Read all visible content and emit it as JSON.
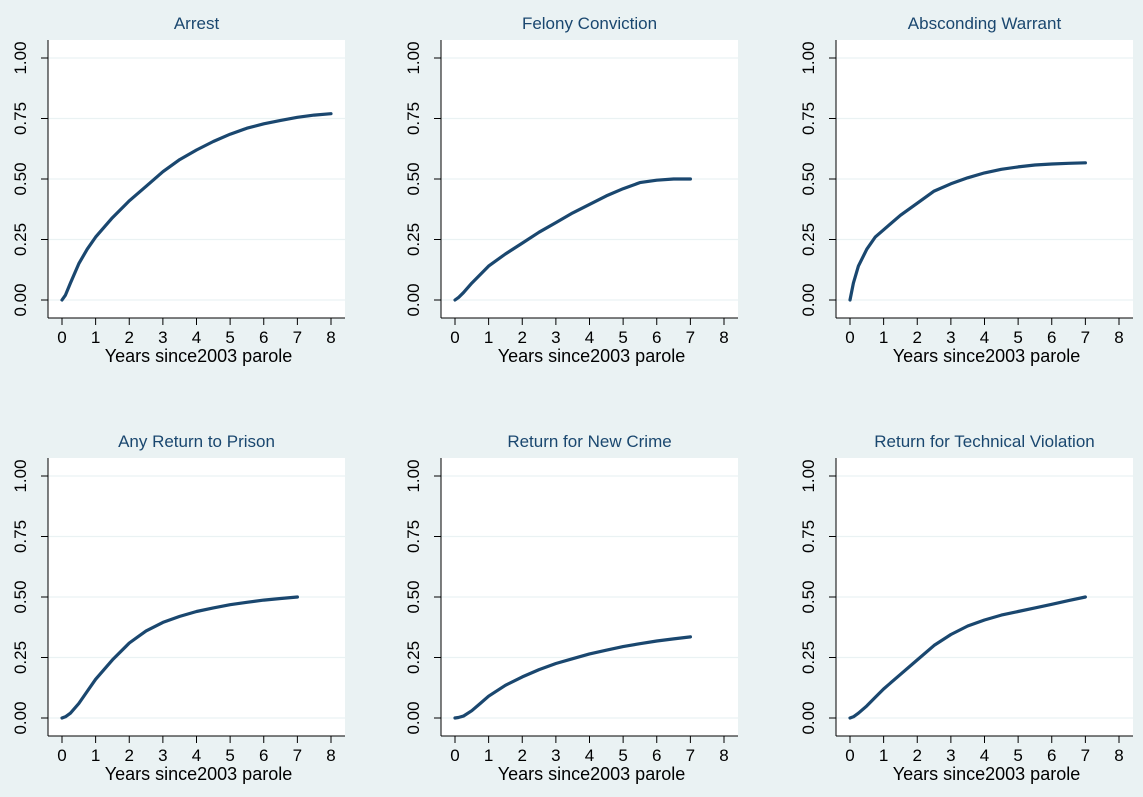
{
  "colors": {
    "background": "#eaf2f3",
    "plot_background": "#ffffff",
    "line": "#1a476f",
    "title_text": "#1a476f"
  },
  "chart_data": [
    {
      "type": "line",
      "title": "Arrest",
      "xlabel": "Years since2003 parole",
      "ylabel": "",
      "xlim": [
        0,
        8
      ],
      "ylim": [
        0,
        1
      ],
      "x_ticks": [
        "0",
        "1",
        "2",
        "3",
        "4",
        "5",
        "6",
        "7",
        "8"
      ],
      "y_ticks": [
        "0.00",
        "0.25",
        "0.50",
        "0.75",
        "1.00"
      ],
      "grid": true,
      "x": [
        0,
        0.1,
        0.25,
        0.5,
        0.75,
        1,
        1.5,
        2,
        2.5,
        3,
        3.5,
        4,
        4.5,
        5,
        5.5,
        6,
        6.5,
        7,
        7.5,
        8
      ],
      "y": [
        0,
        0.02,
        0.07,
        0.15,
        0.21,
        0.26,
        0.34,
        0.41,
        0.47,
        0.53,
        0.58,
        0.62,
        0.655,
        0.685,
        0.71,
        0.728,
        0.742,
        0.755,
        0.764,
        0.77
      ]
    },
    {
      "type": "line",
      "title": "Felony Conviction",
      "xlabel": "Years since2003 parole",
      "ylabel": "",
      "xlim": [
        0,
        8
      ],
      "ylim": [
        0,
        1
      ],
      "x_ticks": [
        "0",
        "1",
        "2",
        "3",
        "4",
        "5",
        "6",
        "7",
        "8"
      ],
      "y_ticks": [
        "0.00",
        "0.25",
        "0.50",
        "0.75",
        "1.00"
      ],
      "grid": true,
      "x": [
        0,
        0.1,
        0.25,
        0.5,
        1,
        1.5,
        2,
        2.5,
        3,
        3.5,
        4,
        4.5,
        5,
        5.5,
        6,
        6.5,
        7
      ],
      "y": [
        0,
        0.01,
        0.03,
        0.07,
        0.14,
        0.19,
        0.235,
        0.28,
        0.32,
        0.36,
        0.395,
        0.43,
        0.46,
        0.485,
        0.495,
        0.5,
        0.5
      ]
    },
    {
      "type": "line",
      "title": "Absconding Warrant",
      "xlabel": "Years since2003 parole",
      "ylabel": "",
      "xlim": [
        0,
        8
      ],
      "ylim": [
        0,
        1
      ],
      "x_ticks": [
        "0",
        "1",
        "2",
        "3",
        "4",
        "5",
        "6",
        "7",
        "8"
      ],
      "y_ticks": [
        "0.00",
        "0.25",
        "0.50",
        "0.75",
        "1.00"
      ],
      "grid": true,
      "x": [
        0,
        0.1,
        0.25,
        0.5,
        0.75,
        1,
        1.5,
        2,
        2.5,
        3,
        3.5,
        4,
        4.5,
        5,
        5.5,
        6,
        6.5,
        7
      ],
      "y": [
        0,
        0.07,
        0.14,
        0.21,
        0.26,
        0.29,
        0.35,
        0.4,
        0.45,
        0.48,
        0.505,
        0.525,
        0.54,
        0.55,
        0.558,
        0.562,
        0.565,
        0.567
      ]
    },
    {
      "type": "line",
      "title": "Any Return to Prison",
      "xlabel": "Years since2003 parole",
      "ylabel": "",
      "xlim": [
        0,
        8
      ],
      "ylim": [
        0,
        1
      ],
      "x_ticks": [
        "0",
        "1",
        "2",
        "3",
        "4",
        "5",
        "6",
        "7",
        "8"
      ],
      "y_ticks": [
        "0.00",
        "0.25",
        "0.50",
        "0.75",
        "1.00"
      ],
      "grid": true,
      "x": [
        0,
        0.1,
        0.25,
        0.5,
        0.75,
        1,
        1.5,
        2,
        2.5,
        3,
        3.5,
        4,
        4.5,
        5,
        5.5,
        6,
        6.5,
        7
      ],
      "y": [
        0,
        0.005,
        0.02,
        0.06,
        0.11,
        0.16,
        0.24,
        0.31,
        0.36,
        0.395,
        0.42,
        0.44,
        0.455,
        0.468,
        0.478,
        0.487,
        0.494,
        0.5
      ]
    },
    {
      "type": "line",
      "title": "Return for New Crime",
      "xlabel": "Years since2003 parole",
      "ylabel": "",
      "xlim": [
        0,
        8
      ],
      "ylim": [
        0,
        1
      ],
      "x_ticks": [
        "0",
        "1",
        "2",
        "3",
        "4",
        "5",
        "6",
        "7",
        "8"
      ],
      "y_ticks": [
        "0.00",
        "0.25",
        "0.50",
        "0.75",
        "1.00"
      ],
      "grid": true,
      "x": [
        0,
        0.1,
        0.25,
        0.5,
        0.75,
        1,
        1.5,
        2,
        2.5,
        3,
        3.5,
        4,
        4.5,
        5,
        5.5,
        6,
        6.5,
        7
      ],
      "y": [
        0,
        0.002,
        0.008,
        0.03,
        0.06,
        0.09,
        0.135,
        0.17,
        0.2,
        0.225,
        0.245,
        0.265,
        0.28,
        0.295,
        0.307,
        0.318,
        0.327,
        0.335
      ]
    },
    {
      "type": "line",
      "title": "Return for Technical Violation",
      "xlabel": "Years since2003 parole",
      "ylabel": "",
      "xlim": [
        0,
        8
      ],
      "ylim": [
        0,
        1
      ],
      "x_ticks": [
        "0",
        "1",
        "2",
        "3",
        "4",
        "5",
        "6",
        "7",
        "8"
      ],
      "y_ticks": [
        "0.00",
        "0.25",
        "0.50",
        "0.75",
        "1.00"
      ],
      "grid": true,
      "x": [
        0,
        0.1,
        0.25,
        0.5,
        0.75,
        1,
        1.5,
        2,
        2.5,
        3,
        3.5,
        4,
        4.5,
        5,
        5.5,
        6,
        6.5,
        7
      ],
      "y": [
        0,
        0.005,
        0.02,
        0.05,
        0.085,
        0.12,
        0.18,
        0.24,
        0.3,
        0.345,
        0.38,
        0.405,
        0.425,
        0.44,
        0.455,
        0.47,
        0.485,
        0.5
      ]
    }
  ]
}
